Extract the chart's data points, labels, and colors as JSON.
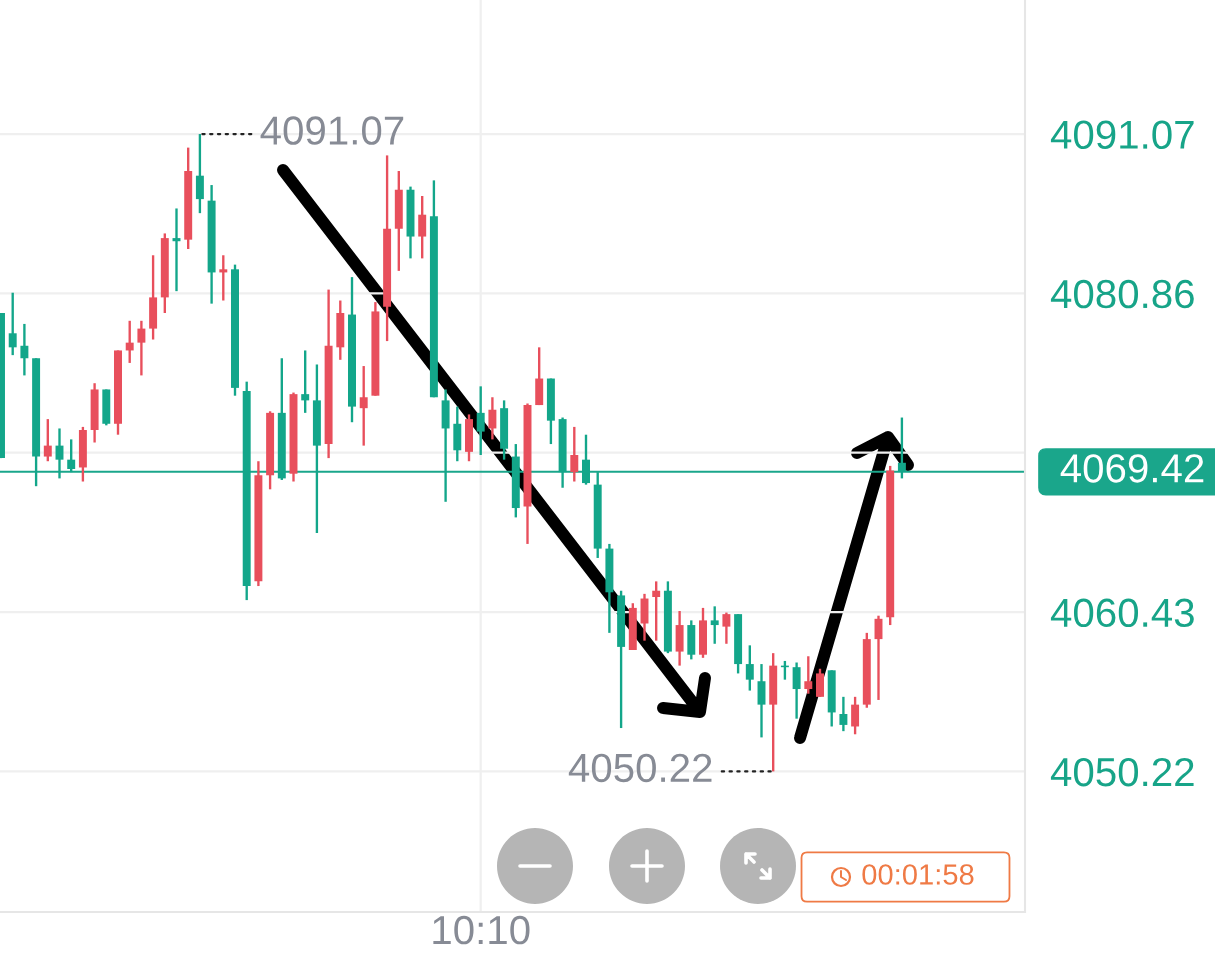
{
  "chart_data": {
    "type": "candlestick",
    "categories": [
      null,
      null,
      null,
      null,
      null,
      null,
      null,
      null,
      null,
      null,
      null,
      null,
      null,
      null,
      null,
      null,
      null,
      null,
      null,
      null,
      null,
      null,
      null,
      null,
      null,
      null,
      null,
      null,
      null,
      null,
      null,
      null,
      null,
      null,
      null,
      null,
      null,
      null,
      null,
      null,
      null,
      "10:10",
      null,
      null,
      null,
      null,
      null,
      null,
      null,
      null,
      null,
      null,
      null,
      null,
      null,
      null,
      null,
      null,
      null,
      null,
      null,
      null,
      null,
      null,
      null,
      null,
      null,
      null,
      null,
      null,
      null,
      null,
      null,
      null,
      null,
      null,
      null,
      null
    ],
    "ohlc": [
      [
        4079.6,
        4079.6,
        4070.3,
        4070.3
      ],
      [
        4078.3,
        4080.9,
        4076.9,
        4077.4
      ],
      [
        4077.5,
        4078.9,
        4075.6,
        4076.7
      ],
      [
        4076.7,
        4076.7,
        4068.5,
        4070.4
      ],
      [
        4070.4,
        4072.8,
        4070.1,
        4071.1
      ],
      [
        4071.1,
        4072.2,
        4069.0,
        4070.2
      ],
      [
        4070.2,
        4071.5,
        4069.4,
        4069.6
      ],
      [
        4069.7,
        4072.3,
        4068.8,
        4072.1
      ],
      [
        4072.1,
        4075.1,
        4071.3,
        4074.7
      ],
      [
        4074.7,
        4074.7,
        4072.4,
        4072.5
      ],
      [
        4072.5,
        4077.2,
        4071.8,
        4077.2
      ],
      [
        4077.2,
        4079.1,
        4076.4,
        4077.7
      ],
      [
        4077.7,
        4079.1,
        4075.6,
        4078.6
      ],
      [
        4078.6,
        4083.3,
        4077.9,
        4080.6
      ],
      [
        4080.6,
        4084.7,
        4079.6,
        4084.4
      ],
      [
        4084.4,
        4086.3,
        4081.0,
        4084.2
      ],
      [
        4084.3,
        4090.2,
        4083.7,
        4088.7
      ],
      [
        4088.4,
        4091.07,
        4086.0,
        4086.9
      ],
      [
        4086.8,
        4087.8,
        4080.2,
        4082.2
      ],
      [
        4082.2,
        4083.3,
        4080.4,
        4082.4
      ],
      [
        4082.4,
        4082.7,
        4074.3,
        4074.8
      ],
      [
        4074.6,
        4075.2,
        4061.2,
        4062.1
      ],
      [
        4062.4,
        4070.1,
        4062.1,
        4069.2
      ],
      [
        4069.2,
        4073.3,
        4068.3,
        4073.2
      ],
      [
        4073.2,
        4076.7,
        4068.9,
        4069.0
      ],
      [
        4069.3,
        4074.5,
        4068.8,
        4074.4
      ],
      [
        4074.4,
        4077.2,
        4073.2,
        4074.0
      ],
      [
        4074.0,
        4076.3,
        4065.5,
        4071.1
      ],
      [
        4071.2,
        4081.1,
        4070.3,
        4077.5
      ],
      [
        4077.4,
        4080.4,
        4076.6,
        4079.6
      ],
      [
        4079.5,
        4081.9,
        4072.6,
        4073.6
      ],
      [
        4073.5,
        4076.2,
        4071.1,
        4074.2
      ],
      [
        4074.3,
        4080.3,
        4074.3,
        4079.7
      ],
      [
        4080.0,
        4089.7,
        4077.8,
        4085.0
      ],
      [
        4085.0,
        4088.7,
        4082.3,
        4087.5
      ],
      [
        4087.5,
        4087.7,
        4083.1,
        4084.5
      ],
      [
        4084.5,
        4087.1,
        4083.1,
        4085.9
      ],
      [
        4085.8,
        4088.1,
        4074.2,
        4074.2
      ],
      [
        4074.0,
        4074.7,
        4067.5,
        4072.2
      ],
      [
        4072.5,
        4073.6,
        4070.1,
        4070.8
      ],
      [
        4070.7,
        4073.1,
        4070.1,
        4072.8
      ],
      [
        4073.2,
        4074.9,
        4070.5,
        4072.0
      ],
      [
        4072.2,
        4074.2,
        4071.5,
        4073.4
      ],
      [
        4073.5,
        4074.0,
        4070.2,
        4070.9
      ],
      [
        4070.4,
        4071.2,
        4066.5,
        4067.1
      ],
      [
        4067.2,
        4073.8,
        4064.8,
        4073.7
      ],
      [
        4073.7,
        4077.4,
        4073.7,
        4075.4
      ],
      [
        4075.4,
        4075.4,
        4071.2,
        4072.7
      ],
      [
        4072.8,
        4072.9,
        4068.4,
        4069.4
      ],
      [
        4069.4,
        4072.3,
        4068.8,
        4070.5
      ],
      [
        4070.2,
        4071.8,
        4068.6,
        4068.7
      ],
      [
        4068.6,
        4069.4,
        4063.9,
        4064.5
      ],
      [
        4064.5,
        4064.8,
        4059.1,
        4061.7
      ],
      [
        4061.5,
        4061.8,
        4053.0,
        4058.2
      ],
      [
        4058.0,
        4061.0,
        4058.0,
        4060.7
      ],
      [
        4059.7,
        4061.6,
        4058.6,
        4061.3
      ],
      [
        4061.4,
        4062.4,
        4058.6,
        4061.8
      ],
      [
        4061.8,
        4062.4,
        4057.8,
        4057.9
      ],
      [
        4057.9,
        4060.5,
        4057.0,
        4059.6
      ],
      [
        4059.6,
        4059.9,
        4057.4,
        4057.7
      ],
      [
        4057.7,
        4060.7,
        4057.5,
        4059.9
      ],
      [
        4059.9,
        4060.8,
        4058.4,
        4059.6
      ],
      [
        4059.5,
        4060.4,
        4058.4,
        4060.3
      ],
      [
        4060.3,
        4060.3,
        4056.5,
        4057.1
      ],
      [
        4057.1,
        4058.3,
        4055.4,
        4056.1
      ],
      [
        4056.0,
        4057.1,
        4052.4,
        4054.5
      ],
      [
        4054.5,
        4057.8,
        4050.22,
        4057.0
      ],
      [
        4057.0,
        4057.3,
        4056.1,
        4056.9
      ],
      [
        4056.9,
        4057.2,
        4053.6,
        4055.5
      ],
      [
        4055.5,
        4057.6,
        4055.2,
        4056.0
      ],
      [
        4055.0,
        4056.8,
        4055.0,
        4056.5
      ],
      [
        4056.7,
        4056.7,
        4053.1,
        4054.0
      ],
      [
        4053.9,
        4055.0,
        4052.8,
        4053.2
      ],
      [
        4053.1,
        4055.0,
        4052.6,
        4054.5
      ],
      [
        4054.5,
        4059.1,
        4054.3,
        4058.7
      ],
      [
        4058.7,
        4060.2,
        4054.8,
        4060.0
      ],
      [
        4060.1,
        4069.8,
        4059.6,
        4069.5
      ],
      [
        4070.0,
        4072.9,
        4069.0,
        4069.42
      ]
    ],
    "colors": [
      "#13a68a",
      "#13a68a",
      "#13a68a",
      "#13a68a",
      "#e84f5c",
      "#13a68a",
      "#13a68a",
      "#e84f5c",
      "#e84f5c",
      "#13a68a",
      "#e84f5c",
      "#e84f5c",
      "#e84f5c",
      "#e84f5c",
      "#e84f5c",
      "#13a68a",
      "#e84f5c",
      "#13a68a",
      "#13a68a",
      "#e84f5c",
      "#13a68a",
      "#13a68a",
      "#e84f5c",
      "#e84f5c",
      "#13a68a",
      "#e84f5c",
      "#13a68a",
      "#13a68a",
      "#e84f5c",
      "#e84f5c",
      "#13a68a",
      "#e84f5c",
      "#e84f5c",
      "#e84f5c",
      "#e84f5c",
      "#13a68a",
      "#e84f5c",
      "#13a68a",
      "#13a68a",
      "#13a68a",
      "#e84f5c",
      "#13a68a",
      "#e84f5c",
      "#13a68a",
      "#13a68a",
      "#e84f5c",
      "#e84f5c",
      "#13a68a",
      "#13a68a",
      "#e84f5c",
      "#13a68a",
      "#13a68a",
      "#13a68a",
      "#13a68a",
      "#e84f5c",
      "#e84f5c",
      "#e84f5c",
      "#13a68a",
      "#e84f5c",
      "#13a68a",
      "#e84f5c",
      "#13a68a",
      "#e84f5c",
      "#13a68a",
      "#13a68a",
      "#13a68a",
      "#e84f5c",
      "#13a68a",
      "#13a68a",
      "#e84f5c",
      "#e84f5c",
      "#13a68a",
      "#13a68a",
      "#e84f5c",
      "#e84f5c",
      "#e84f5c",
      "#e84f5c",
      "#13a68a"
    ],
    "ylim": [
      4041.21,
      4099.66
    ],
    "yticks": [
      4091.07,
      4080.86,
      {
        "value": 4070.65,
        "label": null
      },
      4060.43,
      4050.22
    ],
    "grid": true,
    "ref_lines": [
      {
        "axis": "y",
        "value": 4069.42,
        "label": "4069.42",
        "color": "#1aa68b"
      }
    ],
    "annotations": [
      "4091.07",
      "4050.22",
      "00:01:58"
    ]
  }
}
